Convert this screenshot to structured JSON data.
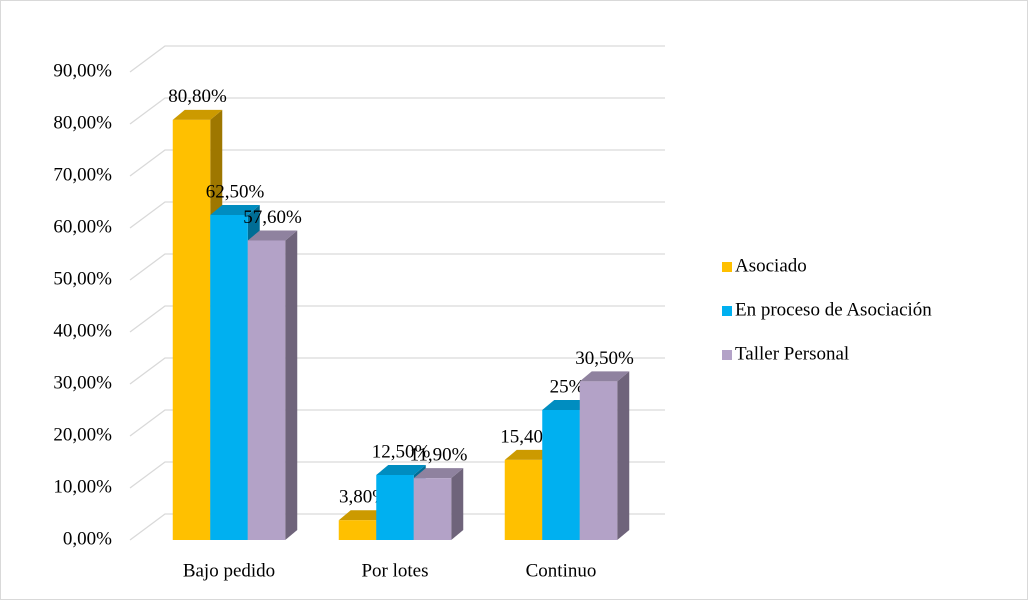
{
  "chart_data": {
    "type": "bar3d",
    "categories": [
      "Bajo pedido",
      "Por lotes",
      "Continuo"
    ],
    "series": [
      {
        "name": "Asociado",
        "color": "#FFC000",
        "values": [
          80.8,
          3.8,
          15.4
        ],
        "value_labels": [
          "80,80%",
          "3,80%",
          "15,40%"
        ]
      },
      {
        "name": "En proceso de Asociación",
        "color": "#00B0F0",
        "values": [
          62.5,
          12.5,
          25
        ],
        "value_labels": [
          "62,50%",
          "12,50%",
          "25%"
        ]
      },
      {
        "name": "Taller Personal",
        "color": "#B3A2C7",
        "values": [
          57.6,
          11.9,
          30.5
        ],
        "value_labels": [
          "57,60%",
          "11,90%",
          "30,50%"
        ]
      }
    ],
    "ylim": [
      0,
      90
    ],
    "yticks": [
      {
        "value": 0,
        "label": "0,00%"
      },
      {
        "value": 10,
        "label": "10,00%"
      },
      {
        "value": 20,
        "label": "20,00%"
      },
      {
        "value": 30,
        "label": "30,00%"
      },
      {
        "value": 40,
        "label": "40,00%"
      },
      {
        "value": 50,
        "label": "50,00%"
      },
      {
        "value": 60,
        "label": "60,00%"
      },
      {
        "value": 70,
        "label": "70,00%"
      },
      {
        "value": 80,
        "label": "80,00%"
      },
      {
        "value": 90,
        "label": "90,00%"
      }
    ],
    "grid": true,
    "legend": "right"
  }
}
